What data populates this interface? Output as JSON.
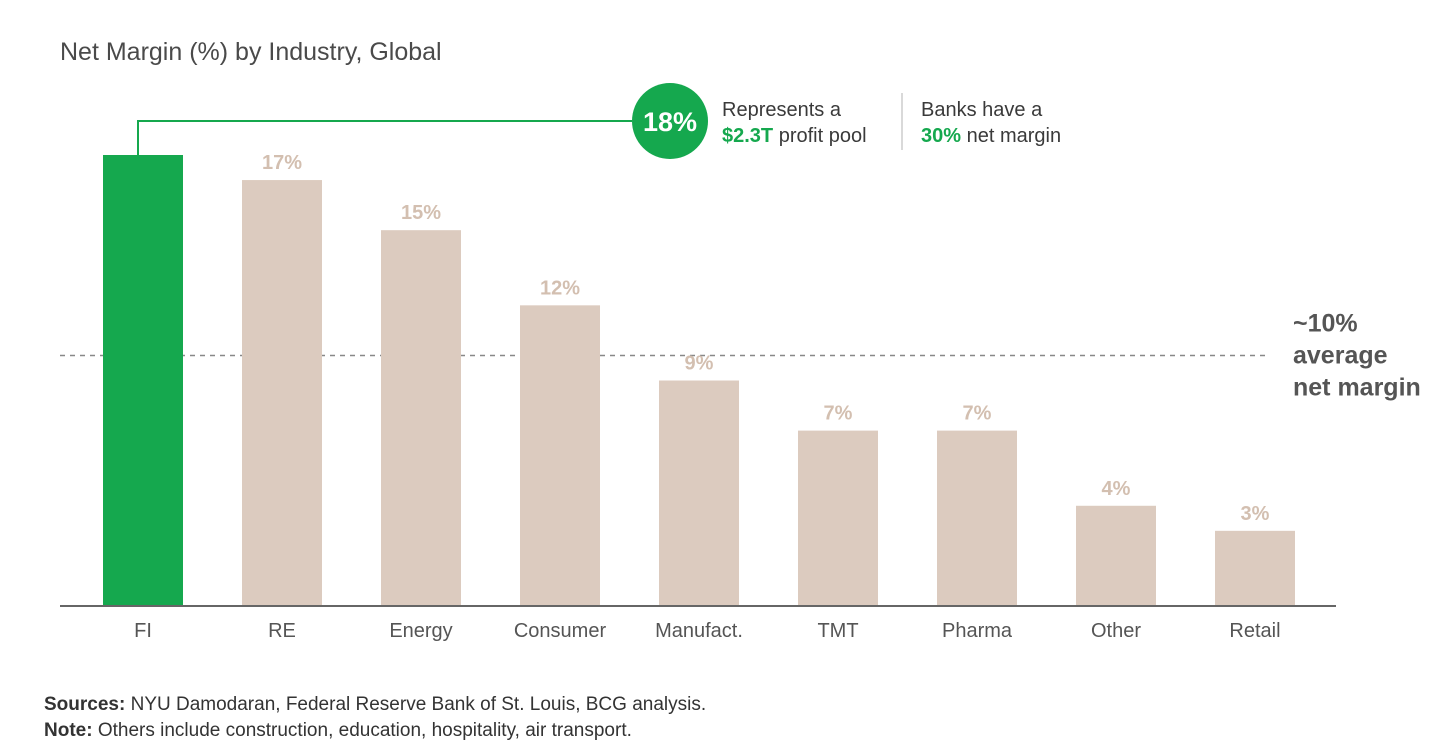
{
  "chart_data": {
    "type": "bar",
    "title": "Net Margin (%) by Industry, Global",
    "categories": [
      "FI",
      "RE",
      "Energy",
      "Consumer",
      "Manufact.",
      "TMT",
      "Pharma",
      "Other",
      "Retail"
    ],
    "values": [
      18,
      17,
      15,
      12,
      9,
      7,
      7,
      4,
      3
    ],
    "value_labels": [
      "18%",
      "17%",
      "15%",
      "12%",
      "9%",
      "7%",
      "7%",
      "4%",
      "3%"
    ],
    "highlight_index": 0,
    "ylim": [
      0,
      18
    ],
    "xlabel": "",
    "ylabel": "",
    "grid": false,
    "reference_line": {
      "value": 10,
      "label_lines": [
        "~10%",
        "average",
        "net margin"
      ]
    }
  },
  "callout": {
    "badge": "18%",
    "line1": "Represents a",
    "line2_strong": "$2.3T",
    "line2_rest": " profit pool",
    "right_line1": "Banks have a",
    "right_line2_strong": "30%",
    "right_line2_rest": " net margin"
  },
  "footer": {
    "sources_label": "Sources:",
    "sources_text": " NYU Damodaran, Federal Reserve Bank of St. Louis, BCG analysis.",
    "note_label": "Note:",
    "note_text": " Others include construction, education, hospitality, air transport."
  },
  "colors": {
    "highlight": "#15a84e",
    "bar": "#dccbbf",
    "value_label": "#d3bfb0",
    "axis": "#666666",
    "reference": "#888888"
  }
}
